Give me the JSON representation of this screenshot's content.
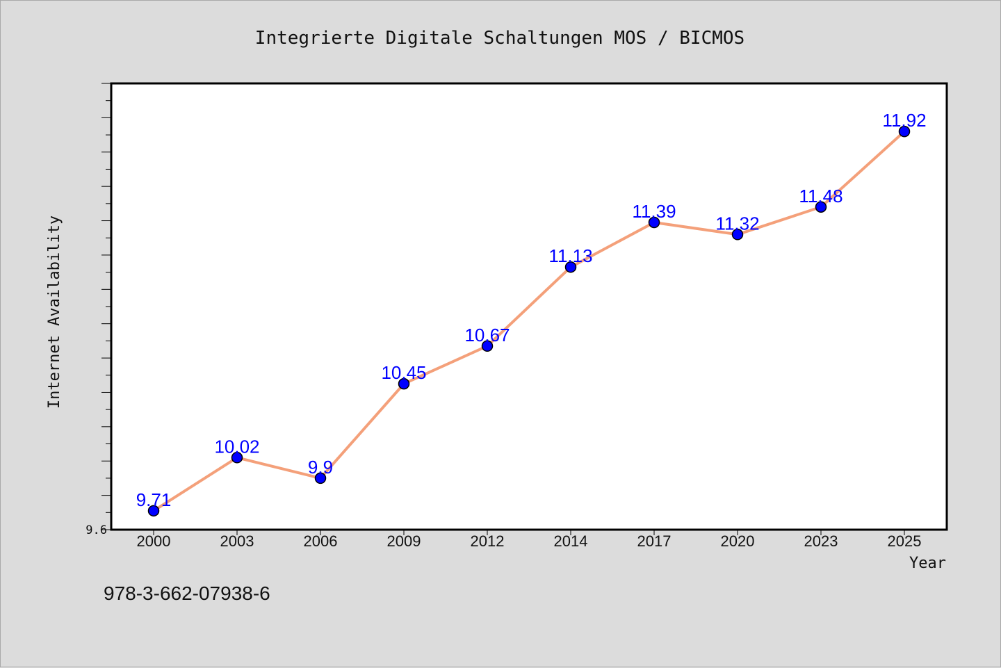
{
  "footer_text": "978-3-662-07938-6",
  "colors": {
    "background": "#dcdcdc",
    "plot_background": "#ffffff",
    "line": "#f4a07a",
    "marker": "#0000ff",
    "data_label": "#0000ff"
  },
  "chart_data": {
    "type": "line",
    "title": "Integrierte Digitale Schaltungen MOS / BICMOS",
    "xlabel": "Year",
    "ylabel": "Internet Availability",
    "categories": [
      "2000",
      "2003",
      "2006",
      "2009",
      "2012",
      "2014",
      "2017",
      "2020",
      "2023",
      "2025"
    ],
    "series": [
      {
        "values": [
          9.71,
          10.02,
          9.9,
          10.45,
          10.67,
          11.13,
          11.39,
          11.32,
          11.48,
          11.92
        ],
        "labels": [
          "9.71",
          "10.02",
          "9.9",
          "10.45",
          "10.67",
          "11.13",
          "11.39",
          "11.32",
          "11.48",
          "11.92"
        ],
        "line_color": "#f4a07a",
        "marker_color": "#0000ff"
      }
    ],
    "ylim": [
      9.6,
      12.2
    ],
    "ytick_labels": [
      "9.6"
    ],
    "grid": false,
    "legend": "none"
  }
}
